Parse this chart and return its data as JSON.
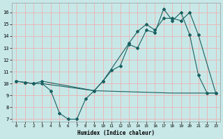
{
  "xlabel": "Humidex (Indice chaleur)",
  "background_color": "#c8e8e8",
  "grid_color": "#e8b8b8",
  "line_color": "#1a6060",
  "xlim": [
    -0.5,
    23.5
  ],
  "ylim": [
    6.8,
    16.8
  ],
  "yticks": [
    7,
    8,
    9,
    10,
    11,
    12,
    13,
    14,
    15,
    16
  ],
  "xticks": [
    0,
    1,
    2,
    3,
    4,
    5,
    6,
    7,
    8,
    9,
    10,
    11,
    12,
    13,
    14,
    15,
    16,
    17,
    18,
    19,
    20,
    21,
    22,
    23
  ],
  "line1_x": [
    0,
    1,
    2,
    3,
    4,
    5,
    6,
    7,
    8,
    9,
    10,
    11,
    12,
    13,
    14,
    15,
    16,
    17,
    18,
    19,
    20,
    21,
    22,
    23
  ],
  "line1_y": [
    10.2,
    10.1,
    10.0,
    10.0,
    9.4,
    7.5,
    7.0,
    7.0,
    8.7,
    9.4,
    10.2,
    11.1,
    11.5,
    13.3,
    13.0,
    14.5,
    14.3,
    16.3,
    15.3,
    16.0,
    14.1,
    10.7,
    9.2,
    9.2
  ],
  "line2_x": [
    0,
    1,
    2,
    3,
    9,
    10,
    13,
    14,
    15,
    16,
    17,
    18,
    19,
    20,
    21,
    23
  ],
  "line2_y": [
    10.2,
    10.1,
    10.0,
    10.2,
    9.4,
    10.2,
    13.4,
    14.4,
    15.0,
    14.5,
    15.5,
    15.5,
    15.3,
    16.0,
    14.1,
    9.2
  ],
  "line3_x": [
    3,
    9,
    18,
    23
  ],
  "line3_y": [
    10.0,
    9.4,
    9.2,
    9.2
  ]
}
